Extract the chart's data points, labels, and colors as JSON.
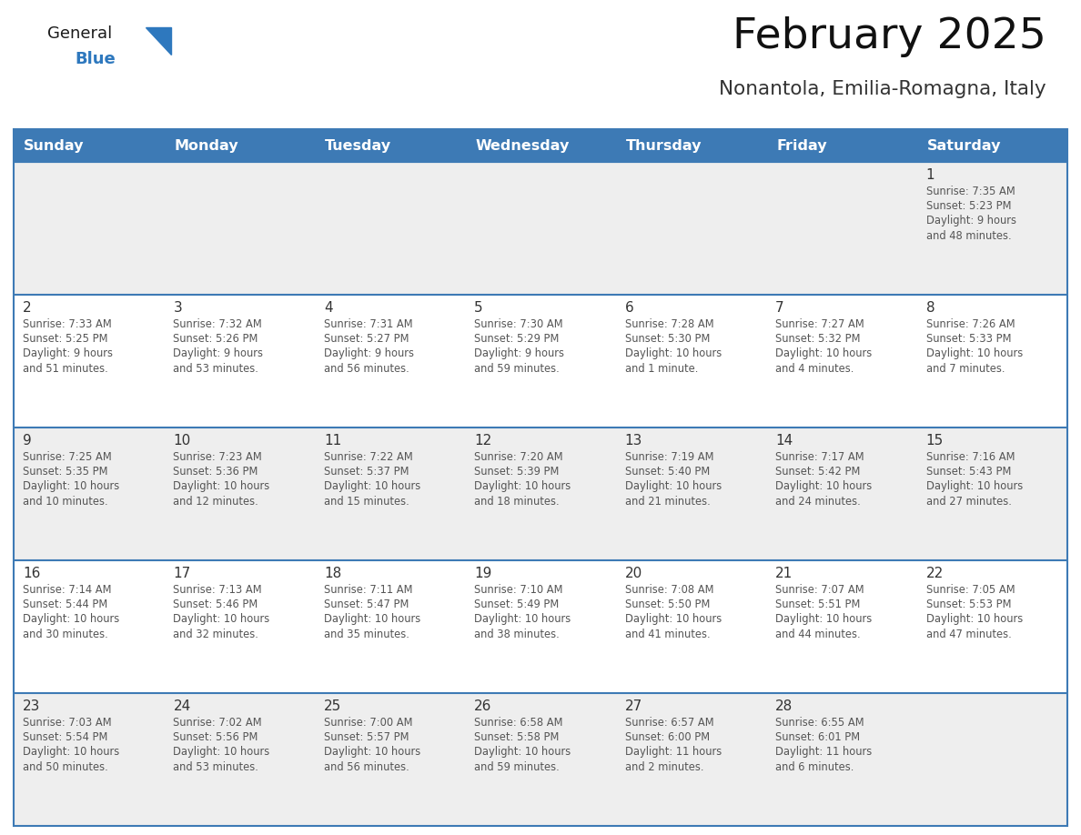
{
  "title": "February 2025",
  "subtitle": "Nonantola, Emilia-Romagna, Italy",
  "header_color": "#3d7ab5",
  "header_text_color": "#ffffff",
  "bg_color": "#ffffff",
  "row_colors": [
    "#eeeeee",
    "#ffffff"
  ],
  "border_color": "#3d7ab5",
  "days_of_week": [
    "Sunday",
    "Monday",
    "Tuesday",
    "Wednesday",
    "Thursday",
    "Friday",
    "Saturday"
  ],
  "logo_general_color": "#1a1a1a",
  "logo_blue_color": "#2e78be",
  "logo_triangle_color": "#2e78be",
  "cell_day_color": "#333333",
  "cell_text_color": "#555555",
  "calendar_data": [
    [
      null,
      null,
      null,
      null,
      null,
      null,
      {
        "day": 1,
        "sunrise": "7:35 AM",
        "sunset": "5:23 PM",
        "daylight": "9 hours and 48 minutes."
      }
    ],
    [
      {
        "day": 2,
        "sunrise": "7:33 AM",
        "sunset": "5:25 PM",
        "daylight": "9 hours and 51 minutes."
      },
      {
        "day": 3,
        "sunrise": "7:32 AM",
        "sunset": "5:26 PM",
        "daylight": "9 hours and 53 minutes."
      },
      {
        "day": 4,
        "sunrise": "7:31 AM",
        "sunset": "5:27 PM",
        "daylight": "9 hours and 56 minutes."
      },
      {
        "day": 5,
        "sunrise": "7:30 AM",
        "sunset": "5:29 PM",
        "daylight": "9 hours and 59 minutes."
      },
      {
        "day": 6,
        "sunrise": "7:28 AM",
        "sunset": "5:30 PM",
        "daylight": "10 hours and 1 minute."
      },
      {
        "day": 7,
        "sunrise": "7:27 AM",
        "sunset": "5:32 PM",
        "daylight": "10 hours and 4 minutes."
      },
      {
        "day": 8,
        "sunrise": "7:26 AM",
        "sunset": "5:33 PM",
        "daylight": "10 hours and 7 minutes."
      }
    ],
    [
      {
        "day": 9,
        "sunrise": "7:25 AM",
        "sunset": "5:35 PM",
        "daylight": "10 hours and 10 minutes."
      },
      {
        "day": 10,
        "sunrise": "7:23 AM",
        "sunset": "5:36 PM",
        "daylight": "10 hours and 12 minutes."
      },
      {
        "day": 11,
        "sunrise": "7:22 AM",
        "sunset": "5:37 PM",
        "daylight": "10 hours and 15 minutes."
      },
      {
        "day": 12,
        "sunrise": "7:20 AM",
        "sunset": "5:39 PM",
        "daylight": "10 hours and 18 minutes."
      },
      {
        "day": 13,
        "sunrise": "7:19 AM",
        "sunset": "5:40 PM",
        "daylight": "10 hours and 21 minutes."
      },
      {
        "day": 14,
        "sunrise": "7:17 AM",
        "sunset": "5:42 PM",
        "daylight": "10 hours and 24 minutes."
      },
      {
        "day": 15,
        "sunrise": "7:16 AM",
        "sunset": "5:43 PM",
        "daylight": "10 hours and 27 minutes."
      }
    ],
    [
      {
        "day": 16,
        "sunrise": "7:14 AM",
        "sunset": "5:44 PM",
        "daylight": "10 hours and 30 minutes."
      },
      {
        "day": 17,
        "sunrise": "7:13 AM",
        "sunset": "5:46 PM",
        "daylight": "10 hours and 32 minutes."
      },
      {
        "day": 18,
        "sunrise": "7:11 AM",
        "sunset": "5:47 PM",
        "daylight": "10 hours and 35 minutes."
      },
      {
        "day": 19,
        "sunrise": "7:10 AM",
        "sunset": "5:49 PM",
        "daylight": "10 hours and 38 minutes."
      },
      {
        "day": 20,
        "sunrise": "7:08 AM",
        "sunset": "5:50 PM",
        "daylight": "10 hours and 41 minutes."
      },
      {
        "day": 21,
        "sunrise": "7:07 AM",
        "sunset": "5:51 PM",
        "daylight": "10 hours and 44 minutes."
      },
      {
        "day": 22,
        "sunrise": "7:05 AM",
        "sunset": "5:53 PM",
        "daylight": "10 hours and 47 minutes."
      }
    ],
    [
      {
        "day": 23,
        "sunrise": "7:03 AM",
        "sunset": "5:54 PM",
        "daylight": "10 hours and 50 minutes."
      },
      {
        "day": 24,
        "sunrise": "7:02 AM",
        "sunset": "5:56 PM",
        "daylight": "10 hours and 53 minutes."
      },
      {
        "day": 25,
        "sunrise": "7:00 AM",
        "sunset": "5:57 PM",
        "daylight": "10 hours and 56 minutes."
      },
      {
        "day": 26,
        "sunrise": "6:58 AM",
        "sunset": "5:58 PM",
        "daylight": "10 hours and 59 minutes."
      },
      {
        "day": 27,
        "sunrise": "6:57 AM",
        "sunset": "6:00 PM",
        "daylight": "11 hours and 2 minutes."
      },
      {
        "day": 28,
        "sunrise": "6:55 AM",
        "sunset": "6:01 PM",
        "daylight": "11 hours and 6 minutes."
      },
      null
    ]
  ]
}
